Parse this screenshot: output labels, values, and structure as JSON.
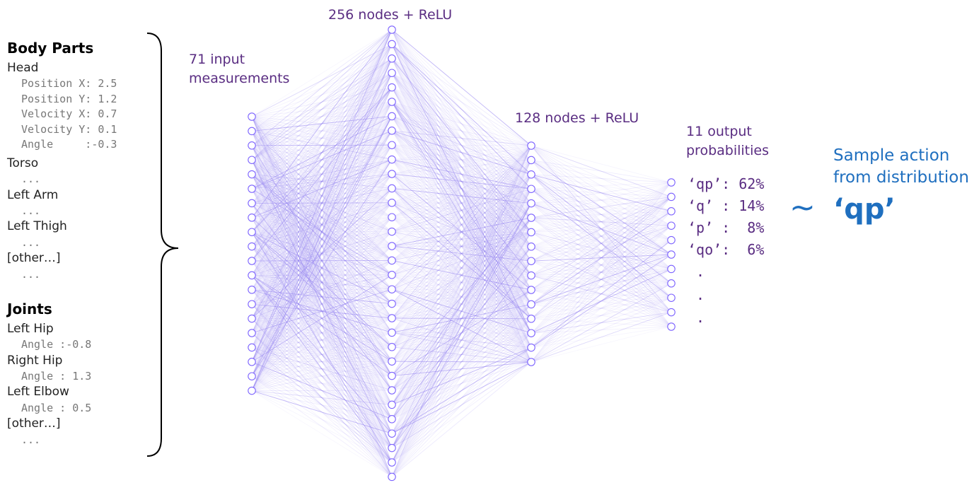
{
  "left_panel": {
    "body_parts_heading": "Body Parts",
    "head_label": "Head",
    "head_values": [
      "Position X: 2.5",
      "Position Y: 1.2",
      "Velocity X: 0.7",
      "Velocity Y: 0.1",
      "Angle     :-0.3"
    ],
    "torso_label": "Torso",
    "left_arm_label": "Left Arm",
    "left_thigh_label": "Left Thigh",
    "other_parts_label": "[other…]",
    "ellipsis": "...",
    "joints_heading": "Joints",
    "left_hip_label": "Left Hip",
    "left_hip_value": "Angle :-0.8",
    "right_hip_label": "Right Hip",
    "right_hip_value": "Angle : 1.3",
    "left_elbow_label": "Left Elbow",
    "left_elbow_value": "Angle : 0.5",
    "other_joints_label": "[other…]"
  },
  "network": {
    "input_label_line1": "71 input",
    "input_label_line2": "measurements",
    "hidden1_label": "256 nodes + ReLU",
    "hidden2_label": "128 nodes + ReLU",
    "output_label_line1": "11 output",
    "output_label_line2": "probabilities",
    "layer_node_counts": [
      20,
      32,
      16,
      11
    ],
    "node_color": "#7b61ff",
    "edge_color": "#8f7df0"
  },
  "outputs": [
    {
      "action": "‘qp’",
      "prob": "62%"
    },
    {
      "action": "‘q’ ",
      "prob": "14%"
    },
    {
      "action": "‘p’ ",
      "prob": " 8%"
    },
    {
      "action": "‘qo’",
      "prob": " 6%"
    }
  ],
  "output_dots": ".",
  "sampling": {
    "tilde": "~",
    "line1": "Sample action",
    "line2": "from distribution",
    "sampled": "‘qp’",
    "color": "#1f6fbf"
  }
}
